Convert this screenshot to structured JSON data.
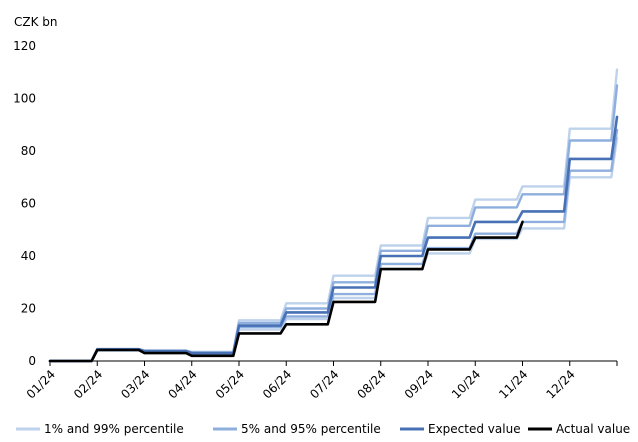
{
  "chart_data": {
    "type": "line",
    "title": "",
    "unit_label": "CZK bn",
    "xlabel": "",
    "ylabel": "",
    "ylim": [
      0,
      120
    ],
    "yticks": [
      0,
      20,
      40,
      60,
      80,
      100,
      120
    ],
    "xlim": [
      "01/24",
      "12/24 end"
    ],
    "x_tick_labels": [
      "01/24",
      "02/24",
      "03/24",
      "04/24",
      "05/24",
      "06/24",
      "07/24",
      "08/24",
      "09/24",
      "10/24",
      "11/24",
      "12/24"
    ],
    "grid": "none",
    "legend_position": "bottom",
    "x": [
      "01/24",
      "02/24",
      "03/24",
      "04/24",
      "05/24",
      "06/24",
      "07/24",
      "08/24",
      "09/24",
      "10/24",
      "11/24",
      "12/24",
      "12/24 end"
    ],
    "series": [
      {
        "name": "1% and 99% percentile",
        "color": "#bed2ec",
        "values": [
          0,
          4.5,
          4.0,
          3.5,
          15.5,
          22.0,
          32.5,
          44.0,
          54.5,
          61.5,
          66.5,
          88.5,
          111.0
        ]
      },
      {
        "name": "1% and 99% percentile",
        "color": "#bed2ec",
        "values": [
          0,
          4.0,
          3.2,
          2.6,
          12.0,
          16.0,
          24.0,
          35.0,
          41.0,
          46.5,
          50.5,
          70.0,
          85.0
        ]
      },
      {
        "name": "5% and 95% percentile",
        "color": "#8eafde",
        "values": [
          0,
          4.5,
          3.8,
          3.2,
          14.5,
          20.0,
          30.0,
          42.0,
          51.5,
          58.5,
          63.5,
          84.0,
          105.0
        ]
      },
      {
        "name": "5% and 95% percentile",
        "color": "#8eafde",
        "values": [
          0,
          4.2,
          3.5,
          2.8,
          13.0,
          17.0,
          25.5,
          37.0,
          43.0,
          48.5,
          53.0,
          72.5,
          88.0
        ]
      },
      {
        "name": "Expected value",
        "color": "#4770b5",
        "values": [
          0,
          4.5,
          3.8,
          3.0,
          13.5,
          18.5,
          28.0,
          40.0,
          47.0,
          53.0,
          57.0,
          77.0,
          93.0
        ]
      },
      {
        "name": "Actual value",
        "color": "#000000",
        "values": [
          0,
          4.2,
          3.0,
          2.0,
          10.5,
          14.0,
          22.5,
          35.0,
          42.5,
          47.0,
          53.0,
          null,
          null
        ]
      }
    ],
    "legend": [
      {
        "label": "1% and 99% percentile",
        "color": "#bed2ec"
      },
      {
        "label": "5% and 95% percentile",
        "color": "#8eafde"
      },
      {
        "label": "Expected value",
        "color": "#4770b5"
      },
      {
        "label": "Actual value",
        "color": "#000000"
      }
    ]
  }
}
